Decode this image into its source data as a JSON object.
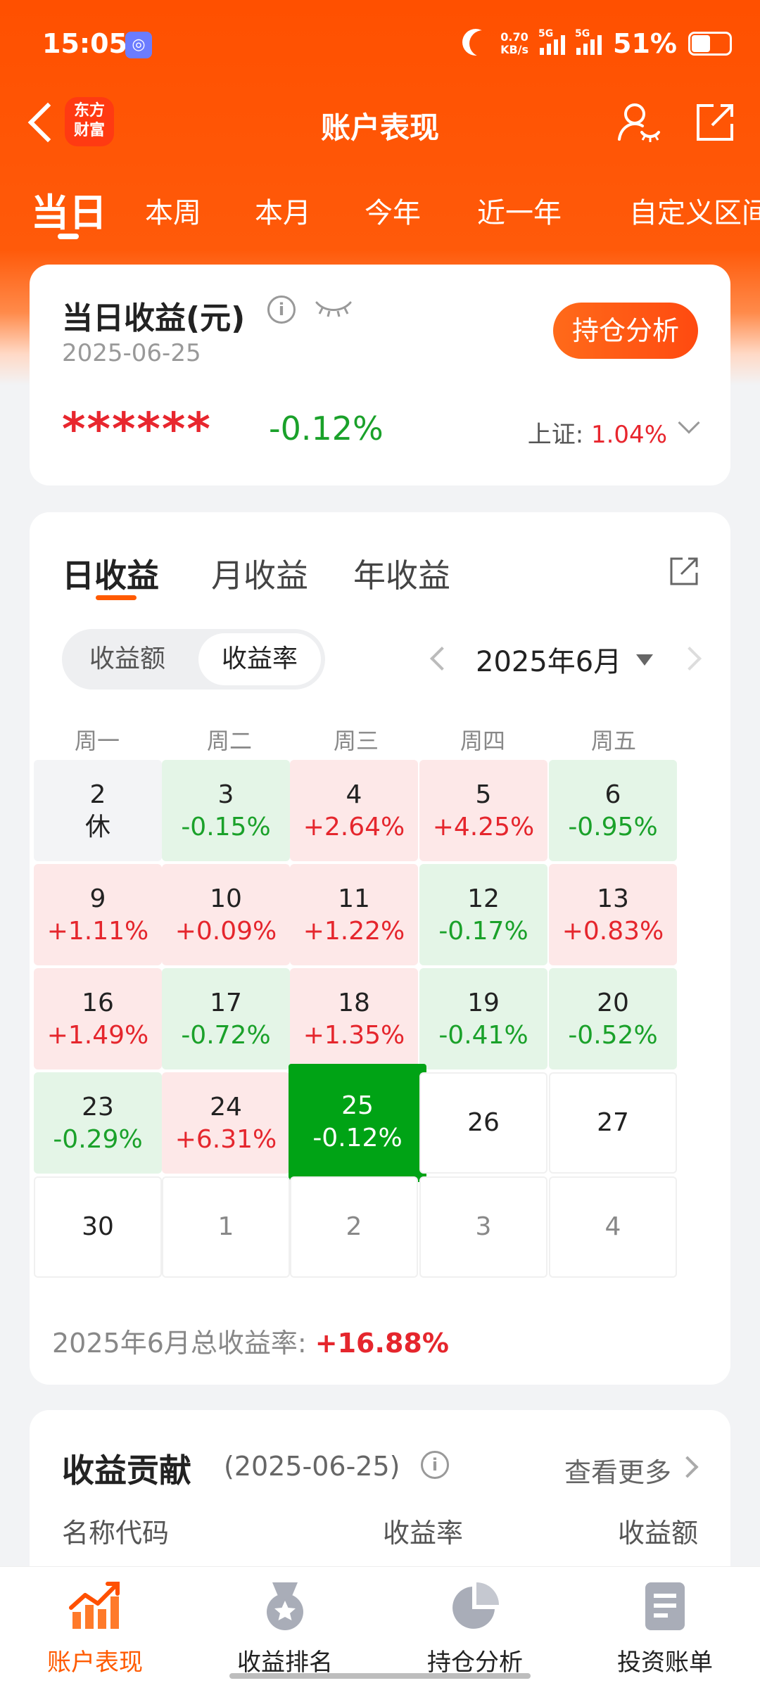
{
  "status_bar": {
    "time": "15:05",
    "network_speed_value": "0.70",
    "network_speed_unit": "KB/s",
    "signal1_label": "5G",
    "signal2_label": "5G",
    "battery_pct": "51%"
  },
  "nav": {
    "logo_line1": "东方",
    "logo_line2": "财富",
    "title": "账户表现"
  },
  "period_tabs": [
    {
      "label": "当日",
      "active": true
    },
    {
      "label": "本周"
    },
    {
      "label": "本月"
    },
    {
      "label": "今年"
    },
    {
      "label": "近一年"
    },
    {
      "label": "自定义区间"
    }
  ],
  "summary": {
    "title": "当日收益(元)",
    "info_glyph": "i",
    "date": "2025-06-25",
    "hold_button": "持仓分析",
    "hidden_amount": "******",
    "return_pct": "-0.12%",
    "index_label": "上证:",
    "index_value": "1.04%"
  },
  "calendar": {
    "tabs": [
      {
        "label": "日收益",
        "active": true
      },
      {
        "label": "月收益"
      },
      {
        "label": "年收益"
      }
    ],
    "segment": {
      "amount": "收益额",
      "rate": "收益率"
    },
    "month_label": "2025年6月",
    "weekdays": [
      "周一",
      "周二",
      "周三",
      "周四",
      "周五"
    ],
    "rows": [
      [
        {
          "day": "2",
          "value": "休",
          "state": "rest"
        },
        {
          "day": "3",
          "value": "-0.15%",
          "state": "down"
        },
        {
          "day": "4",
          "value": "+2.64%",
          "state": "up"
        },
        {
          "day": "5",
          "value": "+4.25%",
          "state": "up"
        },
        {
          "day": "6",
          "value": "-0.95%",
          "state": "down"
        }
      ],
      [
        {
          "day": "9",
          "value": "+1.11%",
          "state": "up"
        },
        {
          "day": "10",
          "value": "+0.09%",
          "state": "up"
        },
        {
          "day": "11",
          "value": "+1.22%",
          "state": "up"
        },
        {
          "day": "12",
          "value": "-0.17%",
          "state": "down"
        },
        {
          "day": "13",
          "value": "+0.83%",
          "state": "up"
        }
      ],
      [
        {
          "day": "16",
          "value": "+1.49%",
          "state": "up"
        },
        {
          "day": "17",
          "value": "-0.72%",
          "state": "down"
        },
        {
          "day": "18",
          "value": "+1.35%",
          "state": "up"
        },
        {
          "day": "19",
          "value": "-0.41%",
          "state": "down"
        },
        {
          "day": "20",
          "value": "-0.52%",
          "state": "down"
        }
      ],
      [
        {
          "day": "23",
          "value": "-0.29%",
          "state": "down"
        },
        {
          "day": "24",
          "value": "+6.31%",
          "state": "up"
        },
        {
          "day": "25",
          "value": "-0.12%",
          "state": "today"
        },
        {
          "day": "26",
          "value": "",
          "state": "empty"
        },
        {
          "day": "27",
          "value": "",
          "state": "empty"
        }
      ],
      [
        {
          "day": "30",
          "value": "",
          "state": "empty"
        },
        {
          "day": "1",
          "value": "",
          "state": "other"
        },
        {
          "day": "2",
          "value": "",
          "state": "other"
        },
        {
          "day": "3",
          "value": "",
          "state": "other"
        },
        {
          "day": "4",
          "value": "",
          "state": "other"
        }
      ]
    ],
    "total_label": "2025年6月总收益率:",
    "total_value": "+16.88%"
  },
  "contribution": {
    "title": "收益贡献",
    "date": "(2025-06-25)",
    "info_glyph": "i",
    "more": "查看更多",
    "columns": [
      "名称代码",
      "收益率",
      "收益额"
    ]
  },
  "bottom_nav": [
    {
      "label": "账户表现",
      "icon": "chart-trend-icon",
      "active": true
    },
    {
      "label": "收益排名",
      "icon": "medal-icon"
    },
    {
      "label": "持仓分析",
      "icon": "pie-chart-icon"
    },
    {
      "label": "投资账单",
      "icon": "document-icon"
    }
  ],
  "colors": {
    "brand": "#ff5000",
    "up": "#e5262d",
    "down": "#1aa12a",
    "today": "#00a315"
  }
}
